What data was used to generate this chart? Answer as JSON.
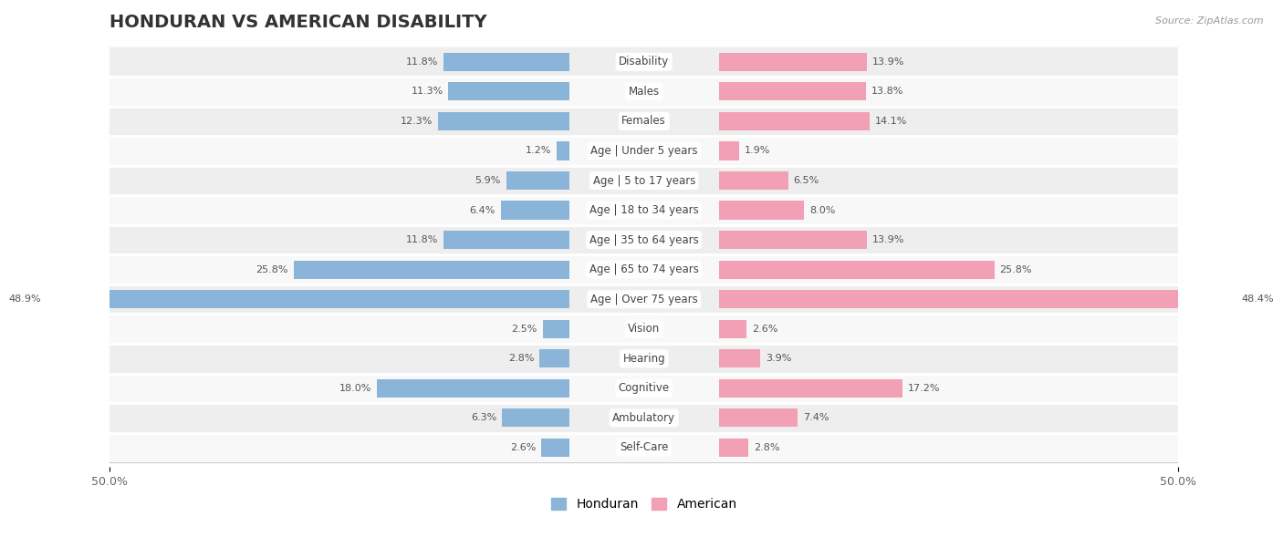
{
  "title": "HONDURAN VS AMERICAN DISABILITY",
  "source": "Source: ZipAtlas.com",
  "categories": [
    "Disability",
    "Males",
    "Females",
    "Age | Under 5 years",
    "Age | 5 to 17 years",
    "Age | 18 to 34 years",
    "Age | 35 to 64 years",
    "Age | 65 to 74 years",
    "Age | Over 75 years",
    "Vision",
    "Hearing",
    "Cognitive",
    "Ambulatory",
    "Self-Care"
  ],
  "honduran": [
    11.8,
    11.3,
    12.3,
    1.2,
    5.9,
    6.4,
    11.8,
    25.8,
    48.9,
    2.5,
    2.8,
    18.0,
    6.3,
    2.6
  ],
  "american": [
    13.9,
    13.8,
    14.1,
    1.9,
    6.5,
    8.0,
    13.9,
    25.8,
    48.4,
    2.6,
    3.9,
    17.2,
    7.4,
    2.8
  ],
  "honduran_color": "#8ab4d8",
  "american_color": "#f2a0b5",
  "background_row_even": "#eeeeee",
  "background_row_odd": "#f8f8f8",
  "axis_max": 50.0,
  "title_fontsize": 14,
  "label_fontsize": 8.5,
  "value_fontsize": 8.0,
  "legend_fontsize": 10,
  "bar_height": 0.62
}
